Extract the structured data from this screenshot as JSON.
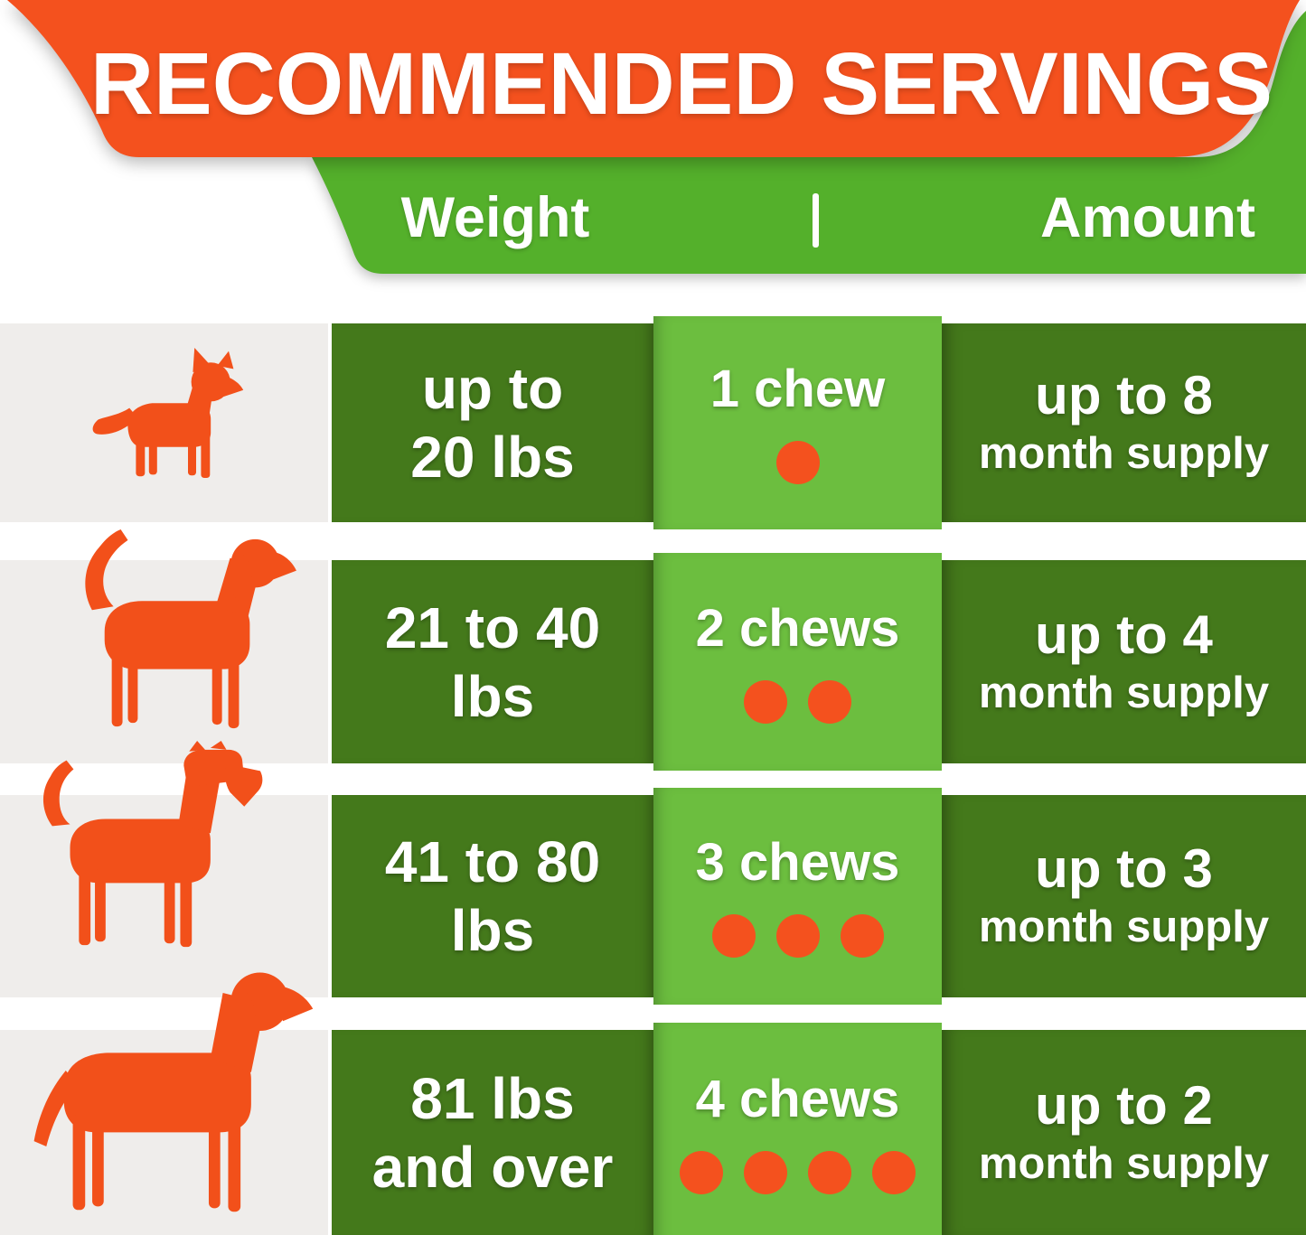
{
  "header": {
    "title": "RECOMMENDED SERVINGS",
    "col_weight": "Weight",
    "col_amount": "Amount",
    "divider": "|"
  },
  "colors": {
    "orange": "#F4511E",
    "banner_green": "#54B02B",
    "dark_green": "#44791B",
    "light_green": "#6CBE3F",
    "panel_gray": "#EFEDEB",
    "text_white": "#FFFFFF"
  },
  "rows": [
    {
      "dog": "small dog (chihuahua) silhouette",
      "weight_line1": "up to",
      "weight_line2": "20 lbs",
      "chews_label": "1 chew",
      "chews_count": 1,
      "amount_line1": "up to 8",
      "amount_line2": "month supply"
    },
    {
      "dog": "medium dog (beagle) silhouette",
      "weight_line1": "21 to 40",
      "weight_line2": "lbs",
      "chews_label": "2 chews",
      "chews_count": 2,
      "amount_line1": "up to 4",
      "amount_line2": "month supply"
    },
    {
      "dog": "large dog (terrier) silhouette",
      "weight_line1": "41 to 80",
      "weight_line2": "lbs",
      "chews_label": "3 chews",
      "chews_count": 3,
      "amount_line1": "up to 3",
      "amount_line2": "month supply"
    },
    {
      "dog": "extra large dog (labrador) silhouette",
      "weight_line1": "81 lbs",
      "weight_line2": "and over",
      "chews_label": "4 chews",
      "chews_count": 4,
      "amount_line1": "up to 2",
      "amount_line2": "month supply"
    }
  ]
}
